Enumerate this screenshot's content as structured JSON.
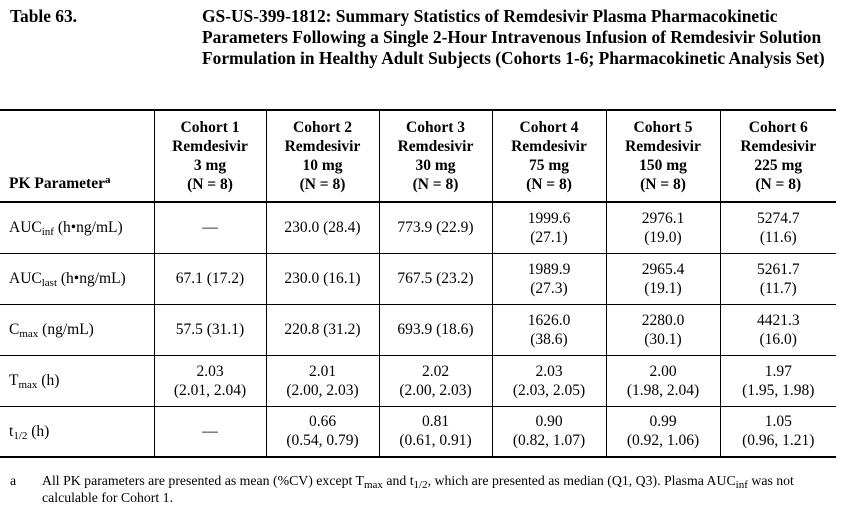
{
  "caption": {
    "number": "Table 63.",
    "title": "GS-US-399-1812: Summary Statistics of Remdesivir Plasma Pharmacokinetic Parameters Following a Single 2-Hour Intravenous Infusion of Remdesivir Solution Formulation in Healthy Adult Subjects (Cohorts 1-6; Pharmacokinetic Analysis Set)"
  },
  "table": {
    "param_header": {
      "label": "PK Parameter",
      "footnote": "a"
    },
    "cohorts": [
      {
        "name": "Cohort 1",
        "drug": "Remdesivir",
        "dose": "3 mg",
        "n": "(N = 8)"
      },
      {
        "name": "Cohort 2",
        "drug": "Remdesivir",
        "dose": "10 mg",
        "n": "(N = 8)"
      },
      {
        "name": "Cohort 3",
        "drug": "Remdesivir",
        "dose": "30 mg",
        "n": "(N = 8)"
      },
      {
        "name": "Cohort 4",
        "drug": "Remdesivir",
        "dose": "75 mg",
        "n": "(N = 8)"
      },
      {
        "name": "Cohort 5",
        "drug": "Remdesivir",
        "dose": "150 mg",
        "n": "(N = 8)"
      },
      {
        "name": "Cohort 6",
        "drug": "Remdesivir",
        "dose": "225 mg",
        "n": "(N = 8)"
      }
    ],
    "rows": [
      {
        "param": {
          "base": "AUC",
          "sub": "inf",
          "unit": " (h•ng/mL)"
        },
        "values": [
          [
            "—"
          ],
          [
            "230.0 (28.4)"
          ],
          [
            "773.9 (22.9)"
          ],
          [
            "1999.6",
            "(27.1)"
          ],
          [
            "2976.1",
            "(19.0)"
          ],
          [
            "5274.7",
            "(11.6)"
          ]
        ]
      },
      {
        "param": {
          "base": "AUC",
          "sub": "last",
          "unit": " (h•ng/mL)"
        },
        "values": [
          [
            "67.1 (17.2)"
          ],
          [
            "230.0 (16.1)"
          ],
          [
            "767.5 (23.2)"
          ],
          [
            "1989.9",
            "(27.3)"
          ],
          [
            "2965.4",
            "(19.1)"
          ],
          [
            "5261.7",
            "(11.7)"
          ]
        ]
      },
      {
        "param": {
          "base": "C",
          "sub": "max",
          "unit": " (ng/mL)"
        },
        "values": [
          [
            "57.5 (31.1)"
          ],
          [
            "220.8 (31.2)"
          ],
          [
            "693.9 (18.6)"
          ],
          [
            "1626.0",
            "(38.6)"
          ],
          [
            "2280.0",
            "(30.1)"
          ],
          [
            "4421.3",
            "(16.0)"
          ]
        ]
      },
      {
        "param": {
          "base": "T",
          "sub": "max",
          "unit": " (h)"
        },
        "values": [
          [
            "2.03",
            "(2.01, 2.04)"
          ],
          [
            "2.01",
            "(2.00, 2.03)"
          ],
          [
            "2.02",
            "(2.00, 2.03)"
          ],
          [
            "2.03",
            "(2.03, 2.05)"
          ],
          [
            "2.00",
            "(1.98, 2.04)"
          ],
          [
            "1.97",
            "(1.95, 1.98)"
          ]
        ]
      },
      {
        "param": {
          "base": "t",
          "sub": "1/2",
          "unit": " (h)"
        },
        "values": [
          [
            "—"
          ],
          [
            "0.66",
            "(0.54, 0.79)"
          ],
          [
            "0.81",
            "(0.61, 0.91)"
          ],
          [
            "0.90",
            "(0.82, 1.07)"
          ],
          [
            "0.99",
            "(0.92, 1.06)"
          ],
          [
            "1.05",
            "(0.96, 1.21)"
          ]
        ]
      }
    ]
  },
  "footnote": {
    "mark": "a",
    "part1": "All PK parameters are presented as mean (%CV) except T",
    "sub1": "max",
    "part2": " and t",
    "sub2": "1/2",
    "part3": ", which are presented as median (Q1, Q3). Plasma AUC",
    "sub3": "inf",
    "part4": " was not calculable for Cohort 1."
  }
}
